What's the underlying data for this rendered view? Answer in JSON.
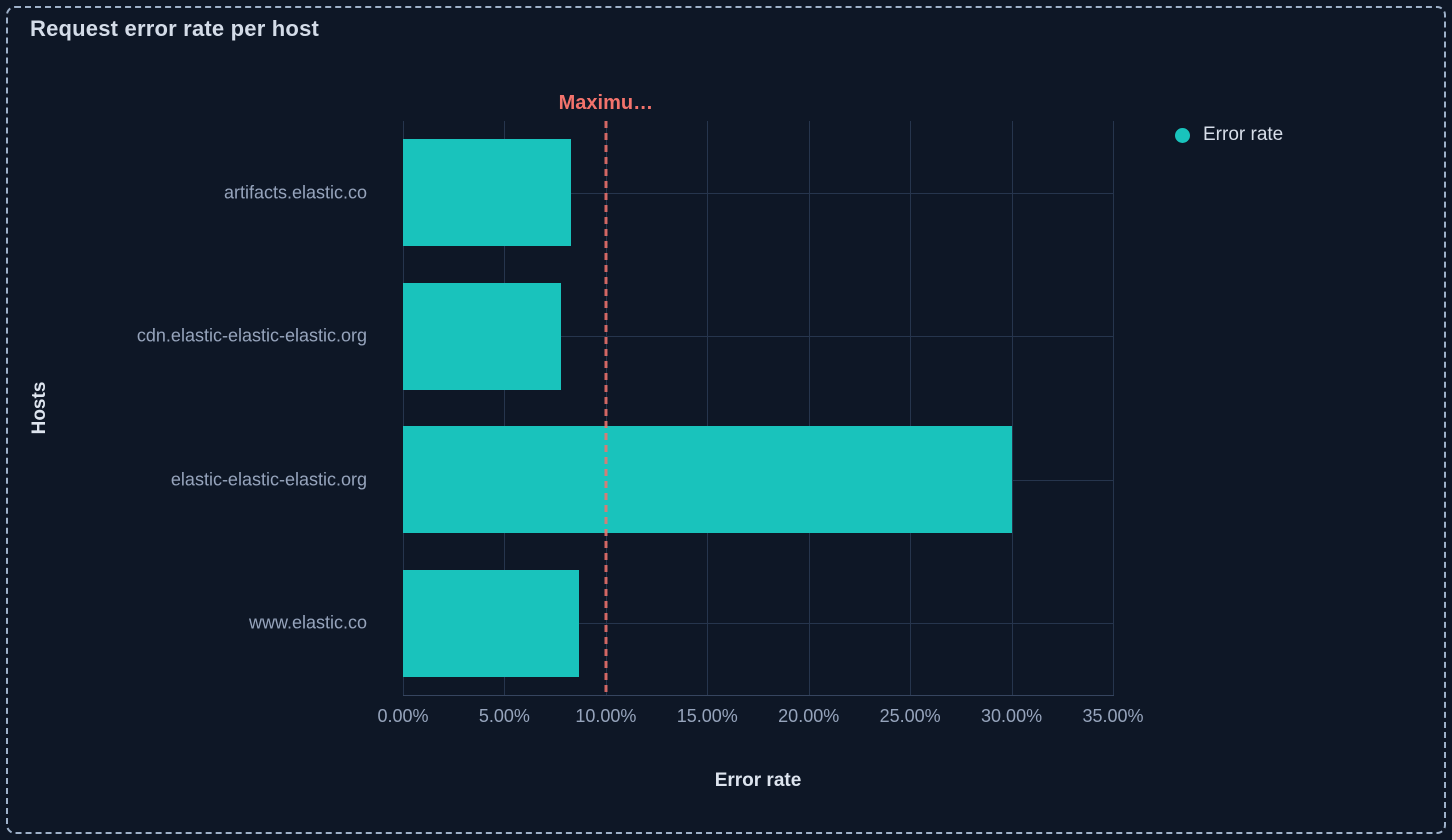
{
  "panel": {
    "title": "Request error rate per host"
  },
  "legend": {
    "items": [
      {
        "label": "Error rate",
        "color": "#19c3bc"
      }
    ]
  },
  "chart_data": {
    "type": "bar",
    "orientation": "horizontal",
    "title": "Request error rate per host",
    "categories": [
      "artifacts.elastic.co",
      "cdn.elastic-elastic-elastic.org",
      "elastic-elastic-elastic.org",
      "www.elastic.co"
    ],
    "series": [
      {
        "name": "Error rate",
        "values": [
          8.3,
          7.8,
          30,
          8.7
        ],
        "unit": "%",
        "color": "#19c3bc"
      }
    ],
    "xlabel": "Error rate",
    "ylabel": "Hosts",
    "xlim": [
      0,
      35
    ],
    "x_tick_values": [
      0,
      5,
      10,
      15,
      20,
      25,
      30,
      35
    ],
    "x_tick_labels": [
      "0.00%",
      "5.00%",
      "10.00%",
      "15.00%",
      "20.00%",
      "25.00%",
      "30.00%",
      "35.00%"
    ],
    "grid": true,
    "legend_position": "right",
    "annotations": [
      {
        "type": "vline",
        "value": 10,
        "label": "Maximu…",
        "style": "dashed",
        "color": "#f3736c"
      }
    ]
  },
  "colors": {
    "background": "#0e1726",
    "panel_border": "#9eb1c9",
    "bar": "#19c3bc",
    "threshold": "#f3736c",
    "gridline": "#26354d",
    "tick_text": "#96a4bc",
    "title_text": "#d4dce8"
  }
}
